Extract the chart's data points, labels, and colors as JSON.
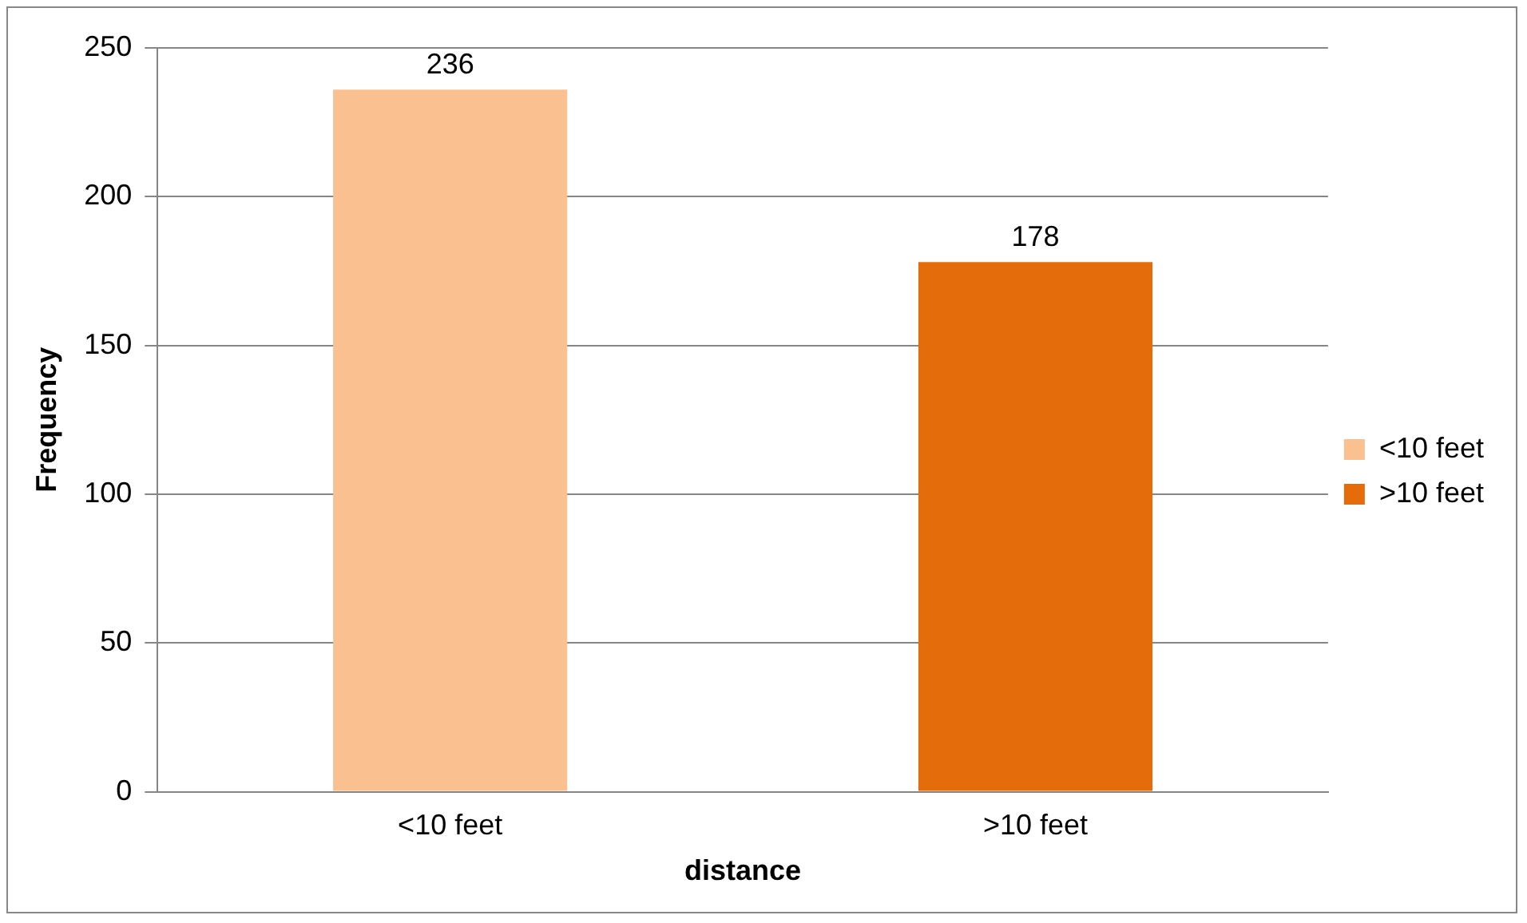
{
  "chart_data": {
    "type": "bar",
    "xlabel": "distance",
    "ylabel": "Frequency",
    "categories": [
      "<10 feet",
      ">10 feet"
    ],
    "series": [
      {
        "name": "<10 feet",
        "color": "#fac090",
        "values": [
          236,
          null
        ]
      },
      {
        "name": ">10 feet",
        "color": "#e46c0a",
        "values": [
          null,
          178
        ]
      }
    ],
    "ylim": [
      0,
      250
    ],
    "yticks": [
      0,
      50,
      100,
      150,
      200,
      250
    ],
    "grid": "y",
    "legend": "right",
    "data_labels": true
  }
}
